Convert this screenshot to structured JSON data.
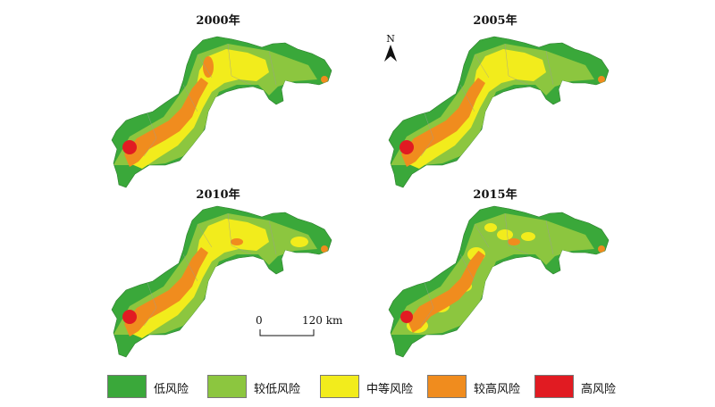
{
  "panels": [
    {
      "title": "2000年",
      "variant": 0
    },
    {
      "title": "2005年",
      "variant": 1
    },
    {
      "title": "2010年",
      "variant": 2
    },
    {
      "title": "2015年",
      "variant": 3
    }
  ],
  "north_label": "N",
  "scale": {
    "start": "0",
    "end": "120 km"
  },
  "legend": [
    {
      "label": "低风险",
      "color": "#3aa83a"
    },
    {
      "label": "较低风险",
      "color": "#8cc63f"
    },
    {
      "label": "中等风险",
      "color": "#f2ec1c"
    },
    {
      "label": "较高风险",
      "color": "#f08c1e"
    },
    {
      "label": "高风险",
      "color": "#e11b22"
    }
  ]
}
